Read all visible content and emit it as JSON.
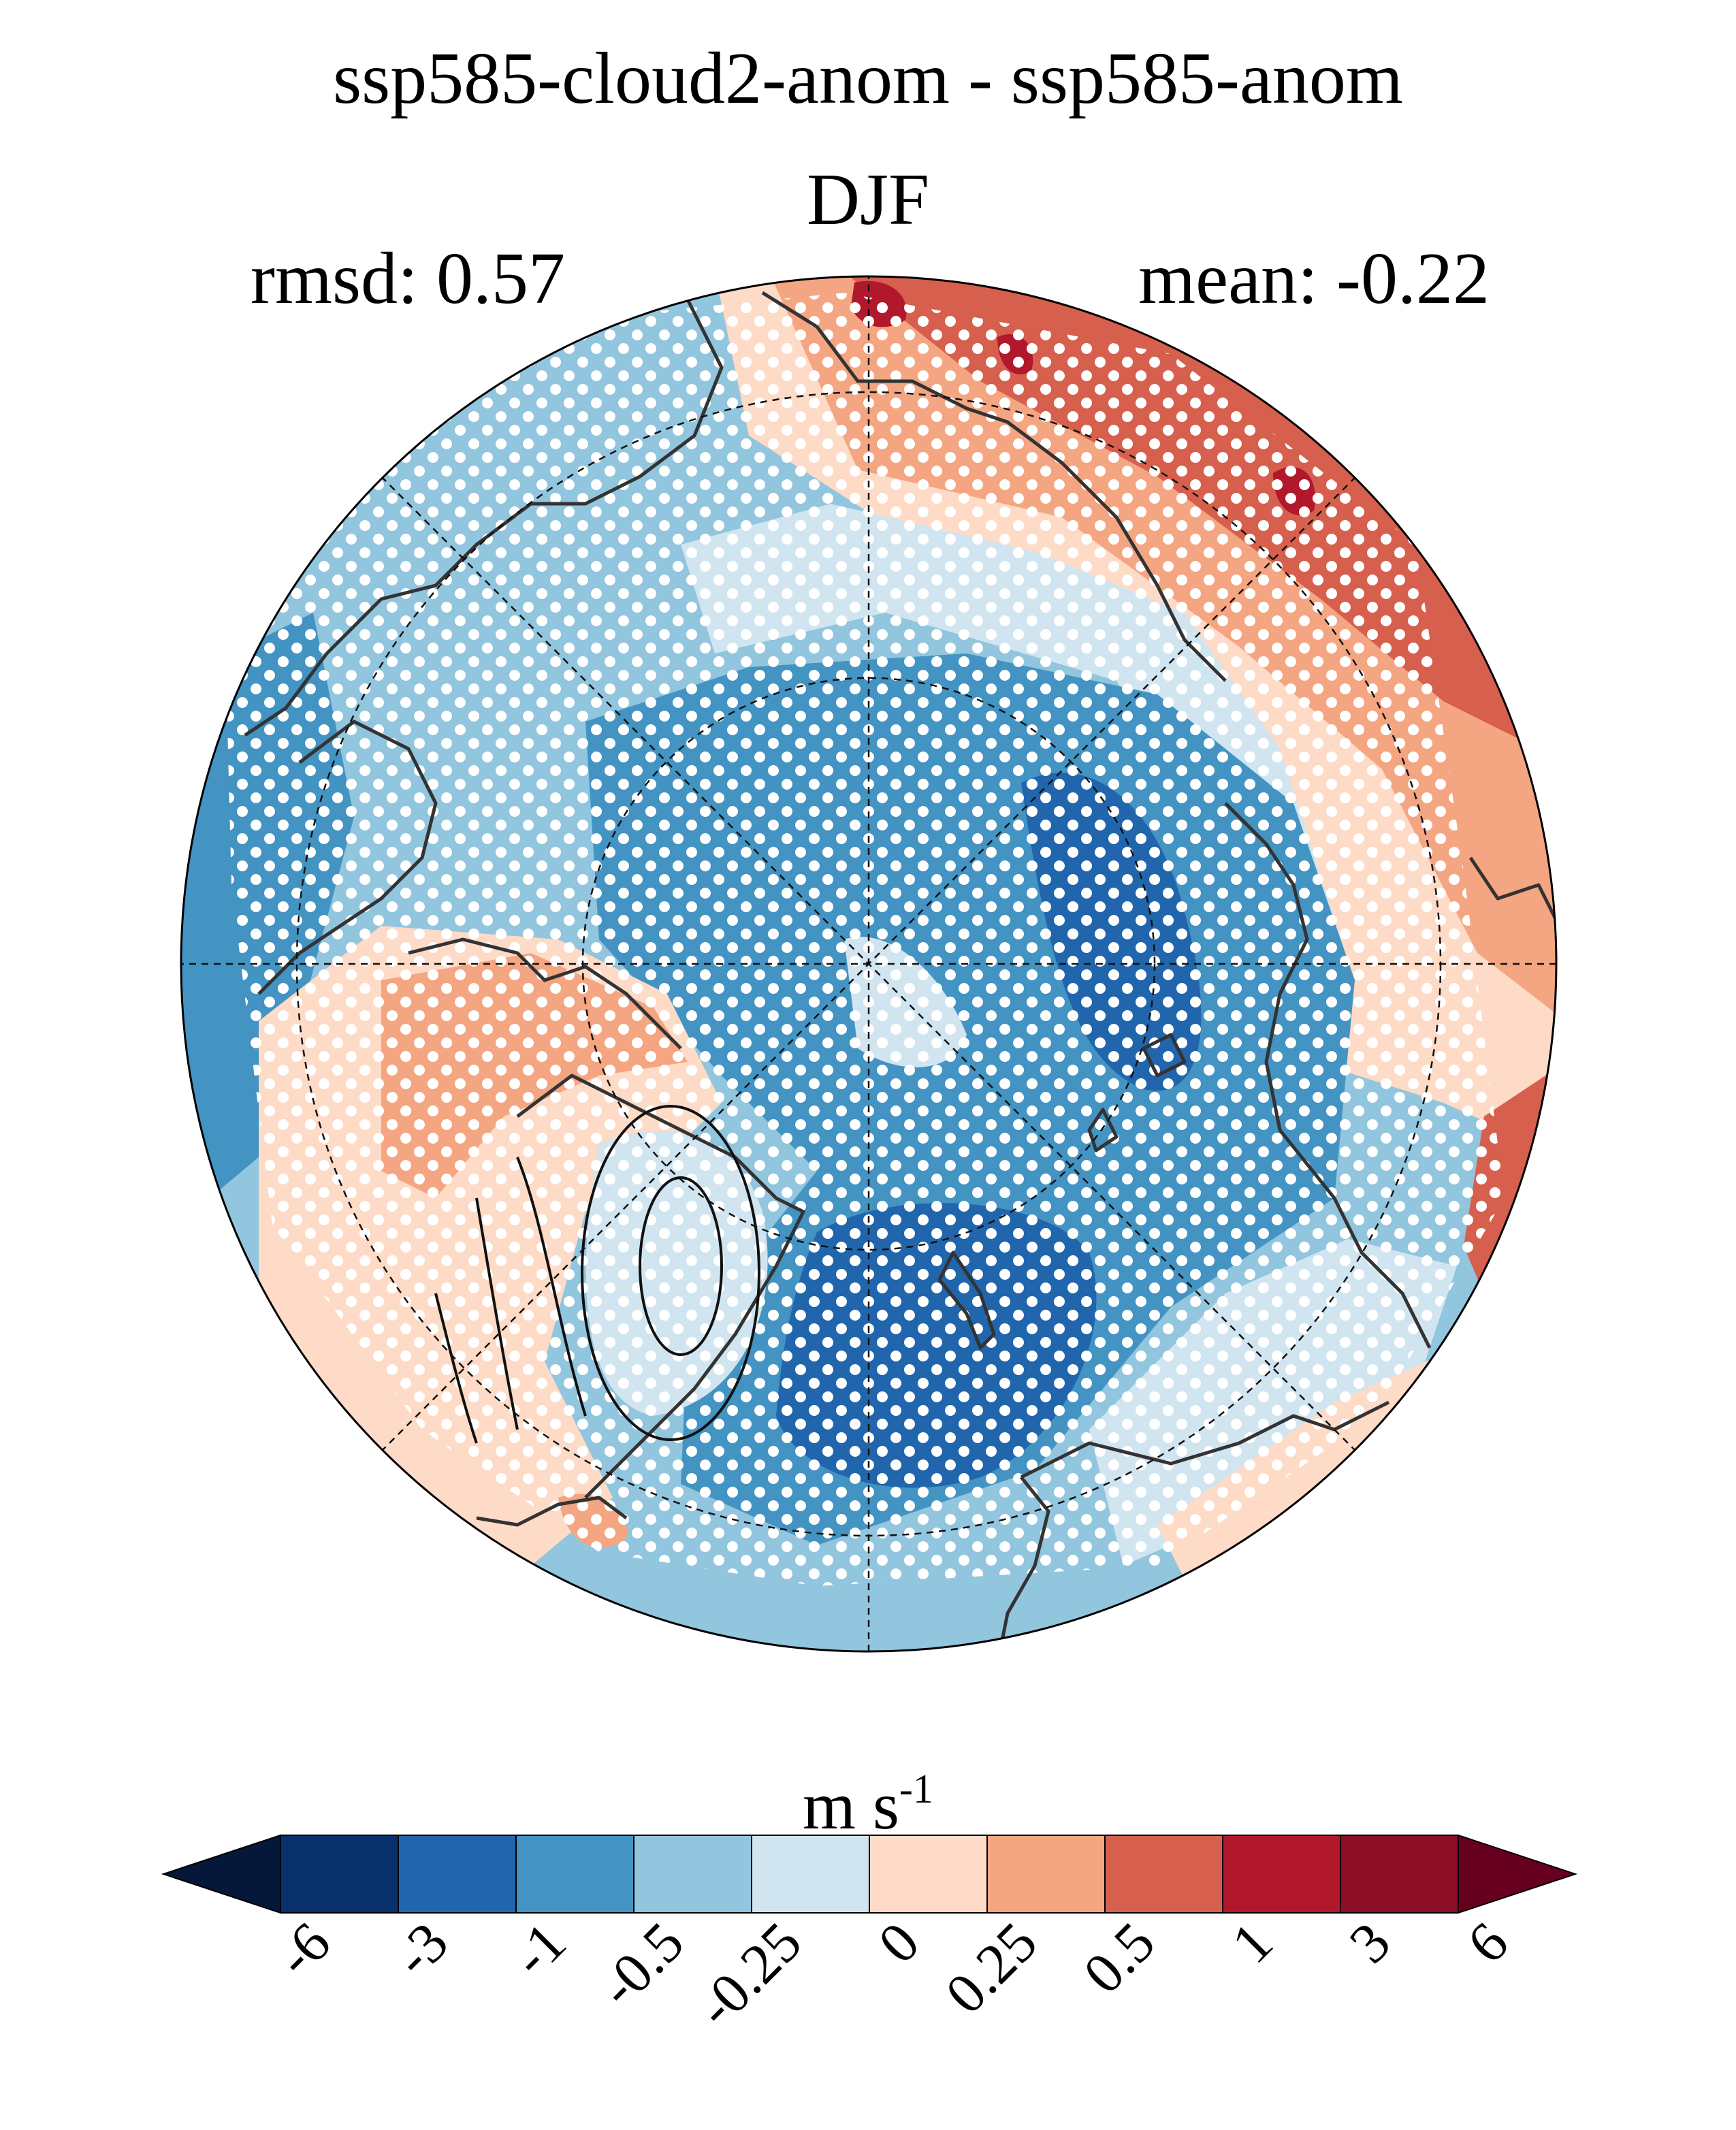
{
  "figure": {
    "title": "ssp585-cloud2-anom - ssp585-anom",
    "season": "DJF",
    "rmsd_label": "rmsd: 0.57",
    "mean_label": "mean: -0.22"
  },
  "map": {
    "projection": "north-polar-stereographic",
    "stippling": "white dots mark significant regions",
    "contours": "black line contours over Greenland"
  },
  "colorbar": {
    "units": "m s",
    "units_exponent": "-1",
    "tick_labels": [
      "-6",
      "-3",
      "-1",
      "-0.5",
      "-0.25",
      "0",
      "0.25",
      "0.5",
      "1",
      "3",
      "6"
    ],
    "colors": [
      "#08306b",
      "#2166ac",
      "#4393c3",
      "#92c5de",
      "#d1e5f0",
      "#fddbc7",
      "#f4a582",
      "#d6604d",
      "#b2182b",
      "#8b0e26"
    ],
    "under_color": "#05183a",
    "over_color": "#67001f"
  }
}
